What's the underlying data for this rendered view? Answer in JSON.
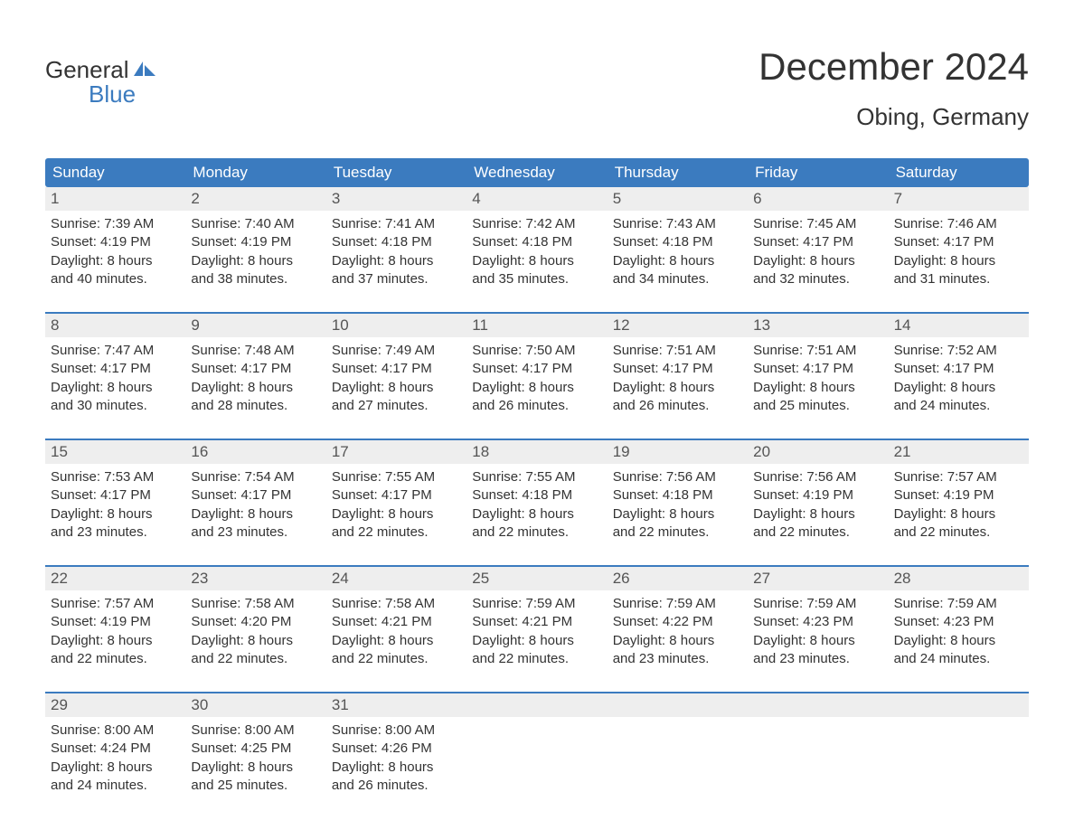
{
  "logo": {
    "word1": "General",
    "word2": "Blue"
  },
  "title": "December 2024",
  "location": "Obing, Germany",
  "colors": {
    "header_bg": "#3b7bbf",
    "header_text": "#ffffff",
    "daynum_bg": "#eeeeee",
    "border": "#3b7bbf",
    "text": "#333333",
    "logo_blue": "#3b7bbf"
  },
  "day_names": [
    "Sunday",
    "Monday",
    "Tuesday",
    "Wednesday",
    "Thursday",
    "Friday",
    "Saturday"
  ],
  "weeks": [
    [
      {
        "n": "1",
        "sr": "Sunrise: 7:39 AM",
        "ss": "Sunset: 4:19 PM",
        "d1": "Daylight: 8 hours",
        "d2": "and 40 minutes."
      },
      {
        "n": "2",
        "sr": "Sunrise: 7:40 AM",
        "ss": "Sunset: 4:19 PM",
        "d1": "Daylight: 8 hours",
        "d2": "and 38 minutes."
      },
      {
        "n": "3",
        "sr": "Sunrise: 7:41 AM",
        "ss": "Sunset: 4:18 PM",
        "d1": "Daylight: 8 hours",
        "d2": "and 37 minutes."
      },
      {
        "n": "4",
        "sr": "Sunrise: 7:42 AM",
        "ss": "Sunset: 4:18 PM",
        "d1": "Daylight: 8 hours",
        "d2": "and 35 minutes."
      },
      {
        "n": "5",
        "sr": "Sunrise: 7:43 AM",
        "ss": "Sunset: 4:18 PM",
        "d1": "Daylight: 8 hours",
        "d2": "and 34 minutes."
      },
      {
        "n": "6",
        "sr": "Sunrise: 7:45 AM",
        "ss": "Sunset: 4:17 PM",
        "d1": "Daylight: 8 hours",
        "d2": "and 32 minutes."
      },
      {
        "n": "7",
        "sr": "Sunrise: 7:46 AM",
        "ss": "Sunset: 4:17 PM",
        "d1": "Daylight: 8 hours",
        "d2": "and 31 minutes."
      }
    ],
    [
      {
        "n": "8",
        "sr": "Sunrise: 7:47 AM",
        "ss": "Sunset: 4:17 PM",
        "d1": "Daylight: 8 hours",
        "d2": "and 30 minutes."
      },
      {
        "n": "9",
        "sr": "Sunrise: 7:48 AM",
        "ss": "Sunset: 4:17 PM",
        "d1": "Daylight: 8 hours",
        "d2": "and 28 minutes."
      },
      {
        "n": "10",
        "sr": "Sunrise: 7:49 AM",
        "ss": "Sunset: 4:17 PM",
        "d1": "Daylight: 8 hours",
        "d2": "and 27 minutes."
      },
      {
        "n": "11",
        "sr": "Sunrise: 7:50 AM",
        "ss": "Sunset: 4:17 PM",
        "d1": "Daylight: 8 hours",
        "d2": "and 26 minutes."
      },
      {
        "n": "12",
        "sr": "Sunrise: 7:51 AM",
        "ss": "Sunset: 4:17 PM",
        "d1": "Daylight: 8 hours",
        "d2": "and 26 minutes."
      },
      {
        "n": "13",
        "sr": "Sunrise: 7:51 AM",
        "ss": "Sunset: 4:17 PM",
        "d1": "Daylight: 8 hours",
        "d2": "and 25 minutes."
      },
      {
        "n": "14",
        "sr": "Sunrise: 7:52 AM",
        "ss": "Sunset: 4:17 PM",
        "d1": "Daylight: 8 hours",
        "d2": "and 24 minutes."
      }
    ],
    [
      {
        "n": "15",
        "sr": "Sunrise: 7:53 AM",
        "ss": "Sunset: 4:17 PM",
        "d1": "Daylight: 8 hours",
        "d2": "and 23 minutes."
      },
      {
        "n": "16",
        "sr": "Sunrise: 7:54 AM",
        "ss": "Sunset: 4:17 PM",
        "d1": "Daylight: 8 hours",
        "d2": "and 23 minutes."
      },
      {
        "n": "17",
        "sr": "Sunrise: 7:55 AM",
        "ss": "Sunset: 4:17 PM",
        "d1": "Daylight: 8 hours",
        "d2": "and 22 minutes."
      },
      {
        "n": "18",
        "sr": "Sunrise: 7:55 AM",
        "ss": "Sunset: 4:18 PM",
        "d1": "Daylight: 8 hours",
        "d2": "and 22 minutes."
      },
      {
        "n": "19",
        "sr": "Sunrise: 7:56 AM",
        "ss": "Sunset: 4:18 PM",
        "d1": "Daylight: 8 hours",
        "d2": "and 22 minutes."
      },
      {
        "n": "20",
        "sr": "Sunrise: 7:56 AM",
        "ss": "Sunset: 4:19 PM",
        "d1": "Daylight: 8 hours",
        "d2": "and 22 minutes."
      },
      {
        "n": "21",
        "sr": "Sunrise: 7:57 AM",
        "ss": "Sunset: 4:19 PM",
        "d1": "Daylight: 8 hours",
        "d2": "and 22 minutes."
      }
    ],
    [
      {
        "n": "22",
        "sr": "Sunrise: 7:57 AM",
        "ss": "Sunset: 4:19 PM",
        "d1": "Daylight: 8 hours",
        "d2": "and 22 minutes."
      },
      {
        "n": "23",
        "sr": "Sunrise: 7:58 AM",
        "ss": "Sunset: 4:20 PM",
        "d1": "Daylight: 8 hours",
        "d2": "and 22 minutes."
      },
      {
        "n": "24",
        "sr": "Sunrise: 7:58 AM",
        "ss": "Sunset: 4:21 PM",
        "d1": "Daylight: 8 hours",
        "d2": "and 22 minutes."
      },
      {
        "n": "25",
        "sr": "Sunrise: 7:59 AM",
        "ss": "Sunset: 4:21 PM",
        "d1": "Daylight: 8 hours",
        "d2": "and 22 minutes."
      },
      {
        "n": "26",
        "sr": "Sunrise: 7:59 AM",
        "ss": "Sunset: 4:22 PM",
        "d1": "Daylight: 8 hours",
        "d2": "and 23 minutes."
      },
      {
        "n": "27",
        "sr": "Sunrise: 7:59 AM",
        "ss": "Sunset: 4:23 PM",
        "d1": "Daylight: 8 hours",
        "d2": "and 23 minutes."
      },
      {
        "n": "28",
        "sr": "Sunrise: 7:59 AM",
        "ss": "Sunset: 4:23 PM",
        "d1": "Daylight: 8 hours",
        "d2": "and 24 minutes."
      }
    ],
    [
      {
        "n": "29",
        "sr": "Sunrise: 8:00 AM",
        "ss": "Sunset: 4:24 PM",
        "d1": "Daylight: 8 hours",
        "d2": "and 24 minutes."
      },
      {
        "n": "30",
        "sr": "Sunrise: 8:00 AM",
        "ss": "Sunset: 4:25 PM",
        "d1": "Daylight: 8 hours",
        "d2": "and 25 minutes."
      },
      {
        "n": "31",
        "sr": "Sunrise: 8:00 AM",
        "ss": "Sunset: 4:26 PM",
        "d1": "Daylight: 8 hours",
        "d2": "and 26 minutes."
      },
      null,
      null,
      null,
      null
    ]
  ]
}
